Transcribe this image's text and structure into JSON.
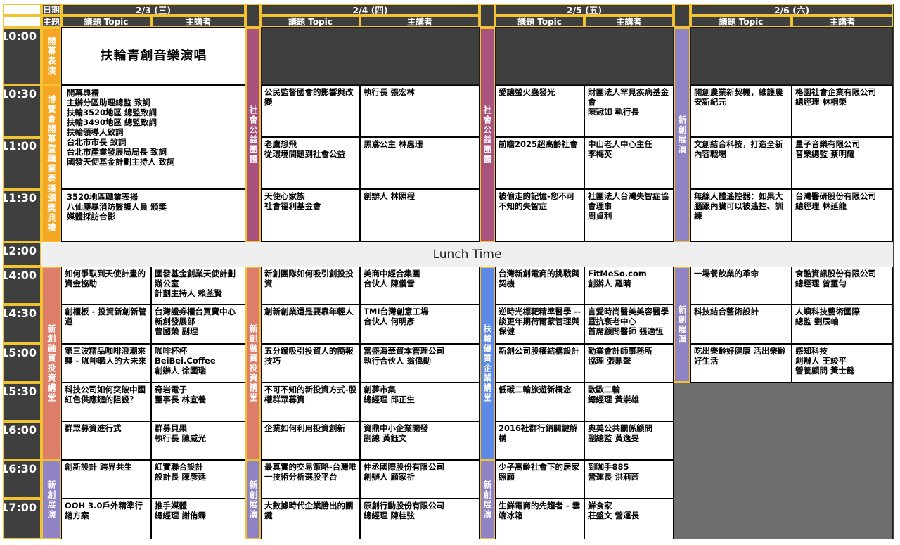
{
  "labels": {
    "date": "日期",
    "theme": "主題",
    "topic_header": "議題 Topic",
    "speaker_header": "主講者",
    "lunch": "Lunch Time"
  },
  "times": [
    "10:00",
    "10:30",
    "11:00",
    "11:30",
    "12:00",
    "14:00",
    "14:30",
    "15:00",
    "15:30",
    "16:00",
    "16:30",
    "17:00"
  ],
  "colors": {
    "orange": "#F5A623",
    "magenta": "#A9527D",
    "salmon": "#DD7E6B",
    "blue": "#5C8AE6",
    "purple": "#9083C5",
    "yellow_border": "#F1C232",
    "dark": "#3F3F3F",
    "grey_block": "#6F6F6F",
    "lunch_bg": "#EFEFEF"
  },
  "days": [
    {
      "date": "2/3 (三)",
      "bands": [
        {
          "label": "開幕表演",
          "color": "orange",
          "from": "10:00",
          "to": "10:00"
        },
        {
          "label": "博覽會開幕暨職業表揚頒獎典禮",
          "color": "orange",
          "from": "10:30",
          "to": "11:30"
        },
        {
          "label": "新創融資投資講堂",
          "color": "salmon",
          "from": "14:00",
          "to": "16:00"
        },
        {
          "label": "新創展演",
          "color": "purple",
          "from": "16:30",
          "to": "17:00"
        }
      ],
      "merged": [
        {
          "from": "10:00",
          "to": "10:00",
          "variant": "title",
          "text": "扶輪青創音樂演唱"
        },
        {
          "from": "10:30",
          "to": "11:00",
          "variant": "list",
          "text": "開幕典禮\n主辦分區助理總監 致詞\n扶輪3520地區 總監致詞\n扶輪3490地區 總監致詞\n扶輪領導人致詞\n台北市市長 致詞\n台北市產業發展局局長 致詞\n國發天使基金計劃主持人 致詞"
        },
        {
          "from": "11:30",
          "to": "11:30",
          "variant": "list",
          "text": "3520地區職業表揚\n八仙塵暴消防醫護人員 頒獎\n媒體採訪合影"
        }
      ],
      "empty": [],
      "grey": null,
      "sessions": [
        {
          "time": "14:00",
          "topic": "如何爭取到天使計畫的資金協助",
          "speaker": "國發基金創業天使計劃辦公室\n計劃主持人 賴荃賢"
        },
        {
          "time": "14:30",
          "topic": "創櫃板 - 投資新創新管道",
          "speaker": "台灣證券櫃台買賣中心\n新創發展部\n曹國榮 副理"
        },
        {
          "time": "15:00",
          "topic": "第三波精品咖啡浪潮來襲 - 咖啡職人的大未來",
          "speaker": "咖啡杯杯BeiBei.Coffee\n創辦人 徐國瑞"
        },
        {
          "time": "15:30",
          "topic": "科技公司如何突破中國紅色供應鏈的阻殺？",
          "speaker": "奇岩電子\n董事長 林宜養"
        },
        {
          "time": "16:00",
          "topic": "群眾募資進行式",
          "speaker": "群募貝果\n執行長 陳威光"
        },
        {
          "time": "16:30",
          "topic": "創新設計 跨界共生",
          "speaker": "紅實聯合設計\n設計長 陳彥廷"
        },
        {
          "time": "17:00",
          "topic": "OOH 3.0戶外精準行銷方案",
          "speaker": "推手媒體\n總經理 謝侑霖"
        }
      ]
    },
    {
      "date": "2/4 (四)",
      "bands": [
        {
          "label": "社會公益團體",
          "color": "magenta",
          "from": "10:00",
          "to": "11:30"
        },
        {
          "label": "新創融資投資講堂",
          "color": "salmon",
          "from": "14:00",
          "to": "16:00"
        },
        {
          "label": "新創展演",
          "color": "purple",
          "from": "16:30",
          "to": "17:00"
        }
      ],
      "merged": [],
      "empty": [
        "10:00"
      ],
      "grey": null,
      "sessions": [
        {
          "time": "10:30",
          "topic": "公民監督國會的影響與改變",
          "speaker": "執行長 張宏林"
        },
        {
          "time": "11:00",
          "topic": "老鷹想飛\n從環境問題到社會公益",
          "speaker": "黑鳶公主 林惠珊"
        },
        {
          "time": "11:30",
          "topic": "天使心家族\n社會福利基金會",
          "speaker": "創辦人 林照程"
        },
        {
          "time": "14:00",
          "topic": "新創團隊如何吸引創投投資",
          "speaker": "美商中經合集團\n合伙人 陳儀雪"
        },
        {
          "time": "14:30",
          "topic": "創新創業還是要靠年輕人",
          "speaker": "TMI台灣創意工場\n合伙人 何明彥"
        },
        {
          "time": "15:00",
          "topic": "五分鐘吸引投資人的簡報技巧",
          "speaker": "富盛海華資本管理公司\n執行合伙人 翁偉勛"
        },
        {
          "time": "15:30",
          "topic": "不可不知的新投資方式-股權群眾募資",
          "speaker": "創夢市集\n總經理 邱正生"
        },
        {
          "time": "16:00",
          "topic": "企業如何利用投資創新",
          "speaker": "資鼎中小企業開發\n副總 黃鈺文"
        },
        {
          "time": "16:30",
          "topic": "最真實的交易策略-台灣唯一技術分析選股平台",
          "speaker": "仲丞國際股份有限公司\n創辦人 顧家祈"
        },
        {
          "time": "17:00",
          "topic": "大數據時代企業勝出的關鍵",
          "speaker": "原創行動股份有限公司\n總經理 陳桂弦"
        }
      ]
    },
    {
      "date": "2/5 (五)",
      "bands": [
        {
          "label": "社會公益團體",
          "color": "magenta",
          "from": "10:00",
          "to": "11:30"
        },
        {
          "label": "扶輪優質企業講堂",
          "color": "blue",
          "from": "14:00",
          "to": "16:00"
        },
        {
          "label": "新創展演",
          "color": "purple",
          "from": "16:30",
          "to": "17:00"
        }
      ],
      "merged": [],
      "empty": [
        "10:00"
      ],
      "grey": null,
      "sessions": [
        {
          "time": "10:30",
          "topic": "愛讓螢火蟲發光",
          "speaker": "財團法人罕見疾病基金會\n陳冠如 執行長"
        },
        {
          "time": "11:00",
          "topic": "前瞻2025超高齡社會",
          "speaker": "中山老人中心主任\n李梅英"
        },
        {
          "time": "11:30",
          "topic": "被偷走的記憶-您不可不知的失智症",
          "speaker": "社團法人台灣失智症協會理事\n周貞利"
        },
        {
          "time": "14:00",
          "topic": "台灣新創電商的挑戰與契機",
          "speaker": "FitMeSo.com\n創辦人 羅晴"
        },
        {
          "time": "14:30",
          "topic": "逆時光標靶精準醫學 --談更年期荷爾蒙管理與保健",
          "speaker": "言愛時尚醫美美容醫學暨抗衰老中心\n首席顧問醫師 張適恆"
        },
        {
          "time": "15:00",
          "topic": "新創公司股權結構設計",
          "speaker": "勤業會計師事務所\n協理 張鼎聲"
        },
        {
          "time": "15:30",
          "topic": "低碳二輪旅遊新概念",
          "speaker": "歐歐二輪\n總經理 黃崇雄"
        },
        {
          "time": "16:00",
          "topic": "2016社群行銷關鍵解構",
          "speaker": "奧美公共關係顧問\n副總監 黃逸旻"
        },
        {
          "time": "16:30",
          "topic": "少子高齡社會下的居家照顧",
          "speaker": "到咖手885\n營運長 洪莉茜"
        },
        {
          "time": "17:00",
          "topic": "生鮮電商的先趨者 - 雲端冰箱",
          "speaker": "鮮食家\n莊盛文 營運長"
        }
      ]
    },
    {
      "date": "2/6 (六)",
      "bands": [
        {
          "label": "新創展演",
          "color": "purple",
          "from": "10:00",
          "to": "11:30"
        },
        {
          "label": "新創展演",
          "color": "purple",
          "from": "14:00",
          "to": "15:00"
        }
      ],
      "merged": [],
      "empty": [
        "10:00"
      ],
      "grey": {
        "from": "15:30",
        "to": "17:00"
      },
      "sessions": [
        {
          "time": "10:30",
          "topic": "開創農業新契機，維護農安新紀元",
          "speaker": "格園社會企業有限公司\n總經理 林桐榮"
        },
        {
          "time": "11:00",
          "topic": "文創結合科技，打造全新內容戰場",
          "speaker": "量子音樂有限公司\n音樂總監 蔡明耀"
        },
        {
          "time": "11:30",
          "topic": "無線人體遙控器：如果大腦跟內臟可以被遙控、訓練",
          "speaker": "台灣醫研股份有限公司\n總經理 林延龍"
        },
        {
          "time": "14:00",
          "topic": "一場餐飲業的革命",
          "speaker": "食酷資訊股份有限公司\n總經理 曾璽勻"
        },
        {
          "time": "14:30",
          "topic": "科技結合藝術設計",
          "speaker": "人嶼科技藝術國際\n總監 劉辰岫"
        },
        {
          "time": "15:00",
          "topic": "吃出樂齡好健康 活出樂齡好生活",
          "speaker": "感知科技\n創辦人 王竣平\n營養顧問 黃士懿"
        }
      ]
    }
  ]
}
